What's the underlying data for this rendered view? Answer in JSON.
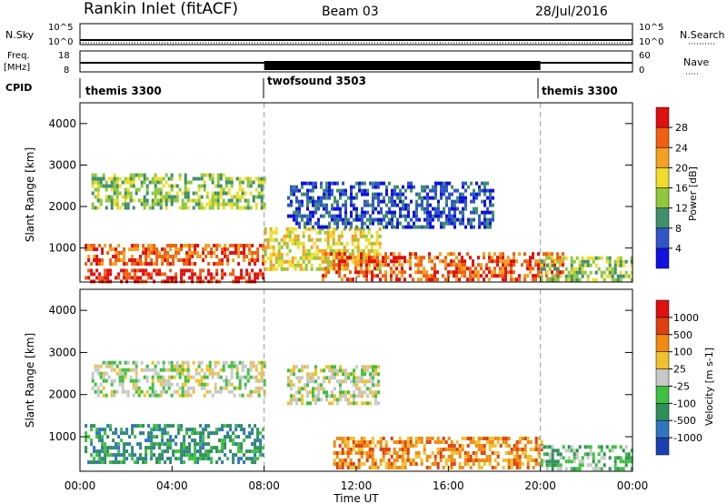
{
  "header": {
    "station": "Rankin Inlet (fitACF)",
    "beam": "Beam 03",
    "date": "28/Jul/2016"
  },
  "strip_labels": {
    "nsky": "N.Sky",
    "nsky_tick_hi": "10^5",
    "nsky_tick_lo": "10^0",
    "nsearch": "N.Search",
    "nsearch_tick_hi": "10^5",
    "nsearch_tick_lo": "10^0",
    "freq_line1": "Freq.",
    "freq_line2": "[MHz]",
    "freq_tick_hi": "18",
    "freq_tick_lo": "8",
    "nave": "Nave",
    "nave_tick_hi": "60",
    "nave_tick_lo": "0",
    "cpid": "CPID"
  },
  "cpid_segments": [
    {
      "label": "themis 3300",
      "start_hour": 0
    },
    {
      "label": "twofsound 3503",
      "start_hour": 8
    },
    {
      "label": "themis 3300",
      "start_hour": 20
    }
  ],
  "chart_data": [
    {
      "type": "heatmap",
      "name": "power",
      "ylabel": "Slant Range [km]",
      "x_range_hours": [
        0,
        24
      ],
      "ylim": [
        180,
        4500
      ],
      "yticks": [
        "1000",
        "2000",
        "3000",
        "4000"
      ],
      "colorbar": {
        "label": "Power [dB]",
        "ticks": [
          "4",
          "8",
          "12",
          "16",
          "20",
          "24",
          "28"
        ],
        "colors": [
          "#1010e0",
          "#2f55c8",
          "#3e8f6a",
          "#8fc83c",
          "#f0dc2a",
          "#f5a020",
          "#f06010",
          "#e01010"
        ]
      },
      "echo_regions": [
        {
          "t0": 0.5,
          "t1": 8.0,
          "r0": 2000,
          "r1": 2800,
          "level": 3
        },
        {
          "t0": 0.2,
          "t1": 8.0,
          "r0": 600,
          "r1": 1100,
          "level": 6
        },
        {
          "t0": 0.2,
          "t1": 8.0,
          "r0": 180,
          "r1": 500,
          "level": 7
        },
        {
          "t0": 8.0,
          "t1": 13.0,
          "r0": 500,
          "r1": 1500,
          "level": 4
        },
        {
          "t0": 10.5,
          "t1": 21.0,
          "r0": 250,
          "r1": 900,
          "level": 6
        },
        {
          "t0": 9.0,
          "t1": 18.0,
          "r0": 1500,
          "r1": 2600,
          "level": 1
        },
        {
          "t0": 20.0,
          "t1": 24.0,
          "r0": 250,
          "r1": 800,
          "level": 3
        }
      ]
    },
    {
      "type": "heatmap",
      "name": "velocity",
      "ylabel": "Slant Range [km]",
      "xlabel": "Time UT",
      "x_range_hours": [
        0,
        24
      ],
      "ylim": [
        180,
        4500
      ],
      "yticks": [
        "1000",
        "2000",
        "3000",
        "4000"
      ],
      "xticks": [
        "00:00",
        "04:00",
        "08:00",
        "12:00",
        "16:00",
        "20:00",
        "00:00"
      ],
      "colorbar": {
        "label": "Velocity [m s-1]",
        "ticks": [
          "1000",
          "500",
          "100",
          "25",
          "-25",
          "-100",
          "-500",
          "-1000"
        ],
        "colors": [
          "#1a3fb0",
          "#2f75c0",
          "#2f8f5a",
          "#3ec040",
          "#c8c8c8",
          "#f0c030",
          "#f08a10",
          "#e04010",
          "#e01010"
        ]
      },
      "echo_regions": [
        {
          "t0": 0.5,
          "t1": 8.0,
          "r0": 2000,
          "r1": 2800,
          "level": 4
        },
        {
          "t0": 0.2,
          "t1": 8.0,
          "r0": 400,
          "r1": 1300,
          "level": 2
        },
        {
          "t0": 9.0,
          "t1": 13.0,
          "r0": 1800,
          "r1": 2700,
          "level": 4
        },
        {
          "t0": 11.0,
          "t1": 20.0,
          "r0": 250,
          "r1": 1000,
          "level": 6
        },
        {
          "t0": 20.0,
          "t1": 24.0,
          "r0": 250,
          "r1": 800,
          "level": 3
        }
      ]
    }
  ]
}
